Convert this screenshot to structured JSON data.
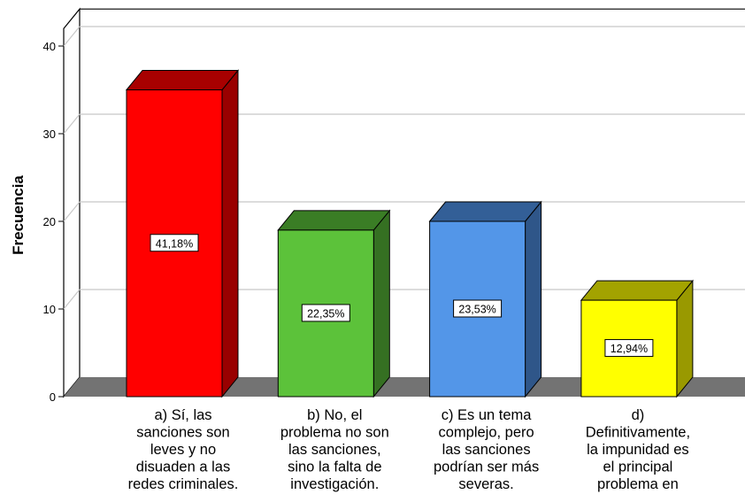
{
  "chart_data": {
    "type": "bar",
    "style": "3d",
    "ylabel": "Frecuencia",
    "xlabel": "",
    "ylim": [
      0,
      42
    ],
    "yticks": [
      0,
      10,
      20,
      30,
      40
    ],
    "grid": true,
    "categories": [
      [
        "a) Sí, las",
        "sanciones son",
        "leves y no",
        "disuaden a las",
        "redes criminales."
      ],
      [
        "b) No, el",
        "problema no son",
        "las sanciones,",
        "sino la falta de",
        "investigación."
      ],
      [
        "c) Es un tema",
        "complejo, pero",
        "las sanciones",
        "podrían ser más",
        "severas."
      ],
      [
        "d)",
        "Definitivamente,",
        "la impunidad es",
        "el principal",
        "problema en"
      ]
    ],
    "values": [
      35,
      19,
      20,
      11
    ],
    "data_labels": [
      "41,18%",
      "22,35%",
      "23,53%",
      "12,94%"
    ],
    "colors": [
      {
        "front": "#ff0000",
        "top": "#a80000",
        "side": "#990000"
      },
      {
        "front": "#5cc23a",
        "top": "#3a7d25",
        "side": "#357022"
      },
      {
        "front": "#5396e8",
        "top": "#335f97",
        "side": "#2f5689"
      },
      {
        "front": "#ffff00",
        "top": "#a3a300",
        "side": "#999900"
      }
    ]
  }
}
